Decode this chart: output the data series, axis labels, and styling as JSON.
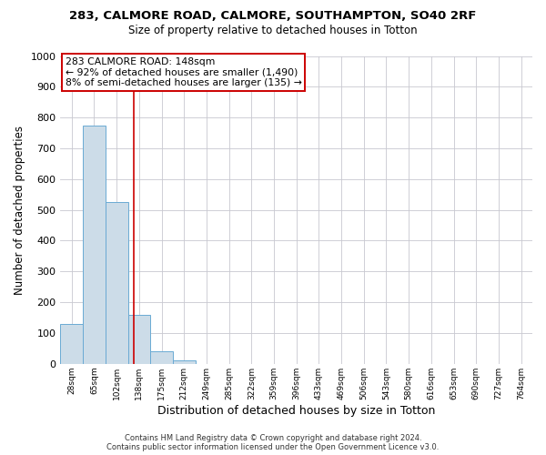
{
  "title": "283, CALMORE ROAD, CALMORE, SOUTHAMPTON, SO40 2RF",
  "subtitle": "Size of property relative to detached houses in Totton",
  "xlabel": "Distribution of detached houses by size in Totton",
  "ylabel": "Number of detached properties",
  "footer_line1": "Contains HM Land Registry data © Crown copyright and database right 2024.",
  "footer_line2": "Contains public sector information licensed under the Open Government Licence v3.0.",
  "bin_labels": [
    "28sqm",
    "65sqm",
    "102sqm",
    "138sqm",
    "175sqm",
    "212sqm",
    "249sqm",
    "285sqm",
    "322sqm",
    "359sqm",
    "396sqm",
    "433sqm",
    "469sqm",
    "506sqm",
    "543sqm",
    "580sqm",
    "616sqm",
    "653sqm",
    "690sqm",
    "727sqm",
    "764sqm"
  ],
  "bar_heights": [
    130,
    775,
    525,
    160,
    40,
    10,
    0,
    0,
    0,
    0,
    0,
    0,
    0,
    0,
    0,
    0,
    0,
    0,
    0,
    0,
    0
  ],
  "bar_color": "#ccdce8",
  "bar_edge_color": "#6aaad4",
  "property_line_x": 3.27,
  "annotation_line1": "283 CALMORE ROAD: 148sqm",
  "annotation_line2": "← 92% of detached houses are smaller (1,490)",
  "annotation_line3": "8% of semi-detached houses are larger (135) →",
  "annotation_box_color": "#ffffff",
  "annotation_box_edge_color": "#cc0000",
  "annotation_line_color": "#cc0000",
  "ylim": [
    0,
    1000
  ],
  "yticks": [
    0,
    100,
    200,
    300,
    400,
    500,
    600,
    700,
    800,
    900,
    1000
  ],
  "background_color": "#ffffff",
  "grid_color": "#c8c8d0"
}
